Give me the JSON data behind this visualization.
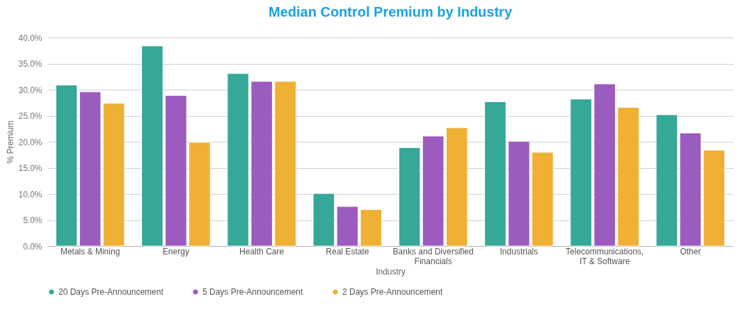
{
  "chart_data": {
    "type": "bar",
    "title": "Median Control Premium by Industry",
    "xlabel": "Industry",
    "ylabel": "% Premium",
    "categories": [
      "Metals & Mining",
      "Energy",
      "Health Care",
      "Real Estate",
      "Banks and Diversified Financials",
      "Industrials",
      "Telecommunications, IT & Software",
      "Other"
    ],
    "series": [
      {
        "name": "20 Days Pre-Announcement",
        "color": "#36a898",
        "values": [
          30.9,
          38.4,
          33.1,
          10.1,
          18.9,
          27.7,
          28.2,
          25.2
        ]
      },
      {
        "name": "5 Days Pre-Announcement",
        "color": "#9c5bbf",
        "values": [
          29.6,
          28.9,
          31.6,
          7.6,
          21.1,
          20.1,
          31.1,
          21.7
        ]
      },
      {
        "name": "2 Days Pre-Announcement",
        "color": "#f0b034",
        "values": [
          27.4,
          19.9,
          31.6,
          7.0,
          22.7,
          18.0,
          26.6,
          18.4
        ]
      }
    ],
    "ylim": [
      0,
      40
    ],
    "yticks": [
      {
        "value": 0,
        "label": "0.0%"
      },
      {
        "value": 5,
        "label": "5.0%"
      },
      {
        "value": 10,
        "label": "10.0%"
      },
      {
        "value": 15,
        "label": "15.0%"
      },
      {
        "value": 20,
        "label": "20.0%"
      },
      {
        "value": 25,
        "label": "25.0%"
      },
      {
        "value": 30,
        "label": "30.0%"
      },
      {
        "value": 35,
        "label": "35.0%"
      },
      {
        "value": 40,
        "label": "40.0%"
      }
    ],
    "grid": "y",
    "legend": "bottom"
  }
}
